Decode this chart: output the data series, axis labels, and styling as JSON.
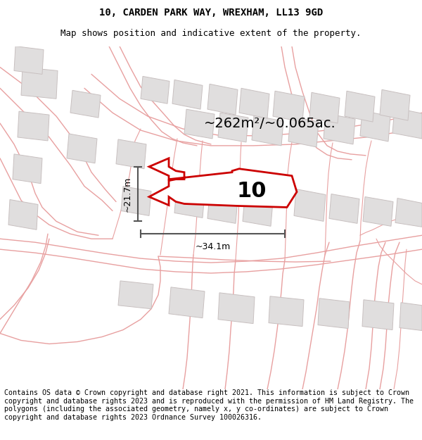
{
  "title_line1": "10, CARDEN PARK WAY, WREXHAM, LL13 9GD",
  "title_line2": "Map shows position and indicative extent of the property.",
  "area_text": "~262m²/~0.065ac.",
  "label_number": "10",
  "dim_vertical": "~21.7m",
  "dim_horizontal": "~34.1m",
  "footer_text": "Contains OS data © Crown copyright and database right 2021. This information is subject to Crown copyright and database rights 2023 and is reproduced with the permission of HM Land Registry. The polygons (including the associated geometry, namely x, y co-ordinates) are subject to Crown copyright and database rights 2023 Ordnance Survey 100026316.",
  "bg_color": "#ffffff",
  "road_color": "#e8a0a0",
  "road_color2": "#f0c0c0",
  "building_color": "#e0dede",
  "building_edge": "#c8c0c0",
  "highlight_color": "#cc0000",
  "dim_color": "#555555",
  "title_fontsize": 10,
  "subtitle_fontsize": 9,
  "footer_fontsize": 7.2,
  "area_fontsize": 14,
  "number_fontsize": 22,
  "dim_fontsize": 9
}
